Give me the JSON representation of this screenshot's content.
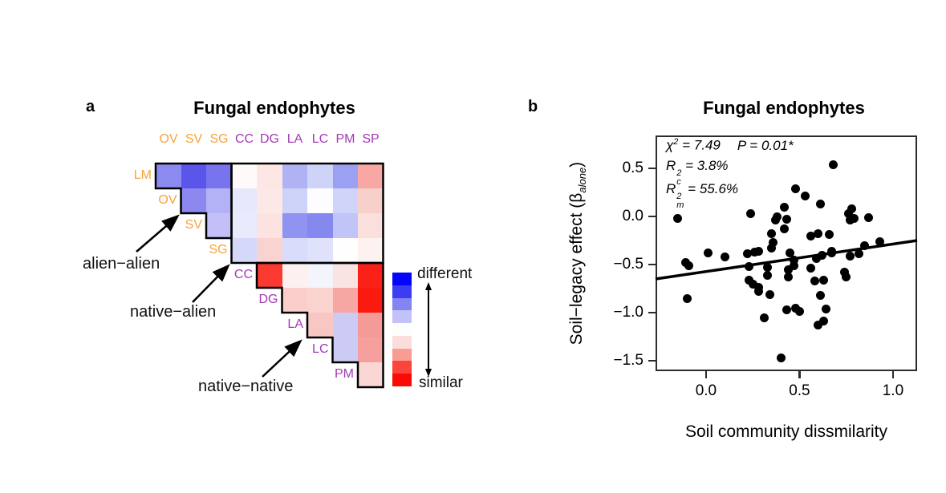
{
  "figure": {
    "panel_a": {
      "label": "a",
      "title": "Fungal endophytes",
      "annotations": {
        "alien_alien": "alien−alien",
        "native_alien": "native−alien",
        "native_native": "native−native"
      },
      "legend": {
        "top_label": "different",
        "bottom_label": "similar",
        "colors": [
          "#0505FB",
          "#3C3CF2",
          "#8484F2",
          "#C2C2F8",
          "#FDFDFE",
          "#FBDEDC",
          "#F89C94",
          "#F9453C",
          "#FA0A04"
        ]
      },
      "label_colors": {
        "alien": "#F7A33E",
        "native": "#A43AB5"
      }
    },
    "panel_b": {
      "label": "b",
      "title": "Fungal endophytes",
      "stats": {
        "chi_symbol": "χ",
        "chi_sup": "2",
        "chi_rest": " = 7.49",
        "p_text": "P = 0.01*",
        "r_symbol": "R",
        "rc_sup": "2",
        "rc_sub": "c",
        "rc_rest": " = 3.8%",
        "rm_sup": "2",
        "rm_sub": "m",
        "rm_rest": " = 55.6%"
      },
      "ylabel": {
        "prefix": "Soil−legacy effect (β",
        "sub": "alone",
        "suffix": ")"
      },
      "xlabel": "Soil community dissmilarity"
    }
  },
  "chart_data": [
    {
      "type": "heatmap",
      "title": "Fungal endophytes",
      "columns": [
        "OV",
        "SV",
        "SG",
        "CC",
        "DG",
        "LA",
        "LC",
        "PM",
        "SP"
      ],
      "rows": [
        "LM",
        "OV",
        "SV",
        "SG",
        "CC",
        "DG",
        "LA",
        "LC",
        "PM"
      ],
      "alien_species": [
        "LM",
        "OV",
        "SV",
        "SG"
      ],
      "native_species": [
        "CC",
        "DG",
        "LA",
        "LC",
        "PM",
        "SP"
      ],
      "regions": [
        "alien-alien",
        "native-alien",
        "native-native"
      ],
      "scale": {
        "top": "different",
        "bottom": "similar"
      },
      "cells": [
        [
          "LM",
          "OV",
          "#8A8AF0"
        ],
        [
          "LM",
          "SV",
          "#5A56EA"
        ],
        [
          "LM",
          "SG",
          "#7874EE"
        ],
        [
          "LM",
          "CC",
          "#FDFAF9"
        ],
        [
          "LM",
          "DG",
          "#FCE7E5"
        ],
        [
          "LM",
          "LA",
          "#AFB3F4"
        ],
        [
          "LM",
          "LC",
          "#CFD3F8"
        ],
        [
          "LM",
          "PM",
          "#9CA0F2"
        ],
        [
          "LM",
          "SP",
          "#F8A7A3"
        ],
        [
          "OV",
          "SV",
          "#8C88F0"
        ],
        [
          "OV",
          "SG",
          "#B4B2F6"
        ],
        [
          "OV",
          "CC",
          "#E6E8FC"
        ],
        [
          "OV",
          "DG",
          "#FCE8E7"
        ],
        [
          "OV",
          "LA",
          "#CCD2F8"
        ],
        [
          "OV",
          "LC",
          "#FDFDFF"
        ],
        [
          "OV",
          "PM",
          "#D0D4F8"
        ],
        [
          "OV",
          "SP",
          "#F7CFCB"
        ],
        [
          "SV",
          "SG",
          "#C3C0F8"
        ],
        [
          "SV",
          "CC",
          "#E9EBFC"
        ],
        [
          "SV",
          "DG",
          "#FCE3E1"
        ],
        [
          "SV",
          "LA",
          "#9094F0"
        ],
        [
          "SV",
          "LC",
          "#8488EF"
        ],
        [
          "SV",
          "PM",
          "#C0C4F6"
        ],
        [
          "SV",
          "SP",
          "#FBDFDD"
        ],
        [
          "SG",
          "CC",
          "#D6D8FA"
        ],
        [
          "SG",
          "DG",
          "#F8D3D1"
        ],
        [
          "SG",
          "LA",
          "#D8DCFA"
        ],
        [
          "SG",
          "LC",
          "#E0E2FB"
        ],
        [
          "SG",
          "PM",
          "#FEFEFF"
        ],
        [
          "SG",
          "SP",
          "#FCF3F1"
        ],
        [
          "CC",
          "DG",
          "#FA3A30"
        ],
        [
          "CC",
          "LA",
          "#FDF1EF"
        ],
        [
          "CC",
          "LC",
          "#F4F4FC"
        ],
        [
          "CC",
          "PM",
          "#FAE3E3"
        ],
        [
          "CC",
          "SP",
          "#FB2018"
        ],
        [
          "DG",
          "LA",
          "#FACFCB"
        ],
        [
          "DG",
          "LC",
          "#FAD3CF"
        ],
        [
          "DG",
          "PM",
          "#F7A7A3"
        ],
        [
          "DG",
          "SP",
          "#FB1A10"
        ],
        [
          "LA",
          "LC",
          "#F9C7C3"
        ],
        [
          "LA",
          "PM",
          "#CBCBF5"
        ],
        [
          "LA",
          "SP",
          "#F49B97"
        ],
        [
          "LC",
          "PM",
          "#CBCBF5"
        ],
        [
          "LC",
          "SP",
          "#F5A09C"
        ],
        [
          "PM",
          "SP",
          "#FAD7D5"
        ]
      ]
    },
    {
      "type": "scatter",
      "title": "Fungal endophytes",
      "xlabel": "Soil community dissmilarity",
      "ylabel": "Soil−legacy effect (β_alone)",
      "xlim": [
        -0.27,
        1.129
      ],
      "ylim": [
        -1.608,
        0.842
      ],
      "x_ticks": [
        {
          "value": 0.0,
          "label": "0.0"
        },
        {
          "value": 0.5,
          "label": "0.5"
        },
        {
          "value": 1.0,
          "label": "1.0"
        }
      ],
      "y_ticks": [
        {
          "value": 0.5,
          "label": "0.5"
        },
        {
          "value": 0.0,
          "label": "0.0"
        },
        {
          "value": -0.5,
          "label": "−0.5"
        },
        {
          "value": -1.0,
          "label": "−1.0"
        },
        {
          "value": -1.5,
          "label": "−1.5"
        }
      ],
      "stats": {
        "chi2": 7.49,
        "P": "0.01*",
        "R2c_pct": 3.8,
        "R2m_pct": 55.6
      },
      "regression_line": {
        "x1": -0.27,
        "y1": -0.65,
        "x2": 1.129,
        "y2": -0.25
      },
      "points": [
        [
          -0.15,
          -0.02
        ],
        [
          0.24,
          0.03
        ],
        [
          -0.11,
          -0.48
        ],
        [
          -0.09,
          -0.51
        ],
        [
          0.01,
          -0.38
        ],
        [
          0.1,
          -0.42
        ],
        [
          -0.1,
          -0.85
        ],
        [
          0.22,
          -0.39
        ],
        [
          0.26,
          -0.37
        ],
        [
          0.28,
          -0.36
        ],
        [
          0.23,
          -0.52
        ],
        [
          0.23,
          -0.66
        ],
        [
          0.25,
          -0.7
        ],
        [
          0.28,
          -0.74
        ],
        [
          0.28,
          -0.78
        ],
        [
          0.33,
          -0.53
        ],
        [
          0.33,
          -0.61
        ],
        [
          0.34,
          -0.81
        ],
        [
          0.31,
          -1.05
        ],
        [
          0.4,
          -1.47
        ],
        [
          0.43,
          -0.97
        ],
        [
          0.35,
          -0.18
        ],
        [
          0.37,
          -0.04
        ],
        [
          0.38,
          0.0
        ],
        [
          0.42,
          0.1
        ],
        [
          0.43,
          -0.03
        ],
        [
          0.42,
          -0.13
        ],
        [
          0.36,
          -0.27
        ],
        [
          0.35,
          -0.33
        ],
        [
          0.68,
          0.54
        ],
        [
          0.48,
          0.29
        ],
        [
          0.53,
          0.21
        ],
        [
          0.61,
          0.13
        ],
        [
          0.78,
          0.08
        ],
        [
          0.79,
          -0.02
        ],
        [
          0.76,
          0.03
        ],
        [
          0.77,
          -0.04
        ],
        [
          0.87,
          -0.01
        ],
        [
          0.56,
          -0.2
        ],
        [
          0.6,
          -0.18
        ],
        [
          0.66,
          -0.19
        ],
        [
          0.85,
          -0.3
        ],
        [
          0.93,
          -0.26
        ],
        [
          0.67,
          -0.36
        ],
        [
          0.45,
          -0.38
        ],
        [
          0.47,
          -0.45
        ],
        [
          0.47,
          -0.51
        ],
        [
          0.44,
          -0.55
        ],
        [
          0.44,
          -0.63
        ],
        [
          0.56,
          -0.54
        ],
        [
          0.58,
          -0.67
        ],
        [
          0.63,
          -0.66
        ],
        [
          0.59,
          -0.44
        ],
        [
          0.62,
          -0.4
        ],
        [
          0.67,
          -0.38
        ],
        [
          0.74,
          -0.58
        ],
        [
          0.75,
          -0.63
        ],
        [
          0.77,
          -0.41
        ],
        [
          0.82,
          -0.39
        ],
        [
          0.61,
          -0.82
        ],
        [
          0.48,
          -0.95
        ],
        [
          0.5,
          -0.99
        ],
        [
          0.64,
          -0.96
        ],
        [
          0.6,
          -1.13
        ],
        [
          0.63,
          -1.09
        ]
      ]
    }
  ]
}
